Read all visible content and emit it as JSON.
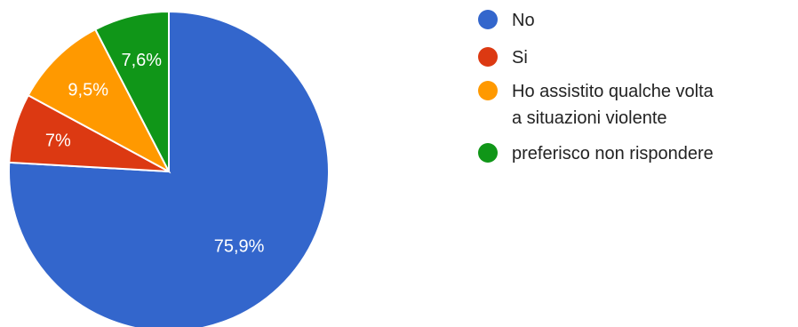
{
  "chart_data": {
    "type": "pie",
    "title": "",
    "legend_position": "right",
    "slices": [
      {
        "label": "No",
        "value": 75.9,
        "display": "75,9%",
        "color": "#3366cc"
      },
      {
        "label": "Si",
        "value": 7.0,
        "display": "7%",
        "color": "#dc3912"
      },
      {
        "label": "Ho assistito qualche volta a situazioni violente",
        "value": 9.5,
        "display": "9,5%",
        "color": "#ff9900"
      },
      {
        "label": "preferisco non rispondere",
        "value": 7.6,
        "display": "7,6%",
        "color": "#109618"
      }
    ]
  }
}
